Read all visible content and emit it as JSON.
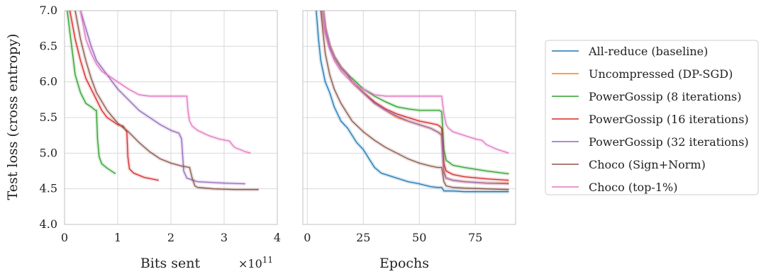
{
  "colors": {
    "all_reduce": "#1f77b4",
    "uncompressed": "#ff7f0e",
    "pg8": "#2ca02c",
    "pg16": "#d62728",
    "pg32": "#9467bd",
    "choco_sign": "#8c564b",
    "choco_top": "#e377c2",
    "grid": "#d9d9d9",
    "frame": "#cccccc"
  },
  "legend": {
    "items": [
      {
        "key": "all_reduce",
        "label": "All-reduce (baseline)"
      },
      {
        "key": "uncompressed",
        "label": "Uncompressed (DP-SGD)"
      },
      {
        "key": "pg8",
        "label": "PowerGossip (8 iterations)"
      },
      {
        "key": "pg16",
        "label": "PowerGossip (16 iterations)"
      },
      {
        "key": "pg32",
        "label": "PowerGossip (32 iterations)"
      },
      {
        "key": "choco_sign",
        "label": "Choco (Sign+Norm)"
      },
      {
        "key": "choco_top",
        "label": "Choco (top-1%)"
      }
    ]
  },
  "chart_data": [
    {
      "type": "line",
      "panel": "left",
      "xlabel": "Bits sent",
      "xscale_label": "×10",
      "xscale_exp": "11",
      "ylabel": "Test loss (cross entropy)",
      "xlim": [
        0,
        4
      ],
      "ylim": [
        4.0,
        7.0
      ],
      "xticks": [
        "0",
        "1",
        "2",
        "3",
        "4"
      ],
      "yticks": [
        "4.0",
        "4.5",
        "5.0",
        "5.5",
        "6.0",
        "6.5",
        "7.0"
      ],
      "series": [
        {
          "key": "pg8",
          "x": [
            0.05,
            0.1,
            0.15,
            0.2,
            0.3,
            0.4,
            0.5,
            0.58,
            0.6,
            0.62,
            0.65,
            0.7,
            0.8,
            0.9,
            0.96
          ],
          "y": [
            7.0,
            6.7,
            6.4,
            6.1,
            5.85,
            5.7,
            5.65,
            5.6,
            5.6,
            5.2,
            4.95,
            4.85,
            4.79,
            4.74,
            4.71
          ]
        },
        {
          "key": "pg16",
          "x": [
            0.1,
            0.2,
            0.3,
            0.4,
            0.5,
            0.6,
            0.7,
            0.8,
            0.9,
            1.0,
            1.1,
            1.17,
            1.19,
            1.22,
            1.3,
            1.5,
            1.7,
            1.77
          ],
          "y": [
            7.0,
            6.6,
            6.3,
            6.05,
            5.9,
            5.75,
            5.6,
            5.5,
            5.45,
            5.4,
            5.38,
            5.3,
            4.95,
            4.78,
            4.72,
            4.66,
            4.63,
            4.62
          ]
        },
        {
          "key": "pg32",
          "x": [
            0.3,
            0.4,
            0.5,
            0.6,
            0.8,
            1.0,
            1.2,
            1.4,
            1.6,
            1.8,
            2.0,
            2.15,
            2.2,
            2.24,
            2.3,
            2.5,
            3.0,
            3.4
          ],
          "y": [
            7.0,
            6.75,
            6.5,
            6.3,
            6.1,
            5.9,
            5.75,
            5.6,
            5.5,
            5.4,
            5.32,
            5.28,
            5.2,
            4.75,
            4.65,
            4.6,
            4.58,
            4.57
          ]
        },
        {
          "key": "choco_sign",
          "x": [
            0.2,
            0.3,
            0.4,
            0.5,
            0.6,
            0.8,
            1.0,
            1.2,
            1.4,
            1.6,
            1.8,
            2.0,
            2.2,
            2.35,
            2.4,
            2.45,
            2.5,
            2.8,
            3.2,
            3.65
          ],
          "y": [
            7.0,
            6.6,
            6.3,
            6.05,
            5.85,
            5.6,
            5.42,
            5.3,
            5.15,
            5.02,
            4.92,
            4.86,
            4.82,
            4.8,
            4.65,
            4.54,
            4.52,
            4.5,
            4.49,
            4.49
          ]
        },
        {
          "key": "choco_top",
          "x": [
            0.3,
            0.4,
            0.5,
            0.6,
            0.7,
            0.8,
            0.9,
            1.0,
            1.2,
            1.4,
            1.6,
            1.8,
            2.0,
            2.2,
            2.3,
            2.32,
            2.35,
            2.4,
            2.5,
            2.7,
            2.9,
            3.1,
            3.15,
            3.2,
            3.4,
            3.5
          ],
          "y": [
            7.0,
            6.6,
            6.4,
            6.25,
            6.15,
            6.1,
            6.05,
            6.0,
            5.9,
            5.82,
            5.8,
            5.8,
            5.8,
            5.8,
            5.8,
            5.6,
            5.45,
            5.38,
            5.32,
            5.25,
            5.2,
            5.17,
            5.12,
            5.08,
            5.02,
            5.0
          ]
        }
      ]
    },
    {
      "type": "line",
      "panel": "right",
      "xlabel": "Epochs",
      "xlim": [
        -2,
        93
      ],
      "ylim": [
        4.0,
        7.0
      ],
      "xticks": [
        "0",
        "25",
        "50",
        "75"
      ],
      "series": [
        {
          "key": "all_reduce",
          "x": [
            4,
            5,
            6,
            8,
            10,
            12,
            15,
            18,
            20,
            22,
            25,
            28,
            30,
            33,
            35,
            40,
            45,
            50,
            55,
            58,
            60,
            61,
            65,
            70,
            80,
            90
          ],
          "y": [
            7.0,
            6.6,
            6.3,
            6.0,
            5.85,
            5.65,
            5.45,
            5.35,
            5.25,
            5.15,
            5.05,
            4.9,
            4.8,
            4.72,
            4.7,
            4.65,
            4.6,
            4.57,
            4.53,
            4.52,
            4.52,
            4.47,
            4.47,
            4.46,
            4.46,
            4.46
          ]
        },
        {
          "key": "uncompressed",
          "x": [
            7,
            8,
            10,
            12,
            15,
            18,
            20,
            25,
            30,
            35,
            40,
            45,
            50,
            55,
            58,
            59,
            60,
            61,
            62,
            65,
            70,
            80,
            90
          ],
          "y": [
            7.0,
            6.7,
            6.5,
            6.35,
            6.2,
            6.1,
            6.0,
            5.85,
            5.7,
            5.6,
            5.5,
            5.45,
            5.4,
            5.35,
            5.3,
            5.28,
            5.25,
            4.75,
            4.65,
            4.62,
            4.6,
            4.58,
            4.58
          ]
        },
        {
          "key": "pg8",
          "x": [
            7,
            8,
            10,
            12,
            15,
            18,
            20,
            25,
            30,
            35,
            40,
            45,
            50,
            55,
            58,
            59,
            60,
            61,
            62,
            65,
            70,
            80,
            90
          ],
          "y": [
            7.0,
            6.75,
            6.5,
            6.35,
            6.2,
            6.1,
            6.05,
            5.9,
            5.8,
            5.72,
            5.65,
            5.62,
            5.6,
            5.6,
            5.6,
            5.6,
            5.58,
            5.05,
            4.9,
            4.83,
            4.8,
            4.75,
            4.71
          ]
        },
        {
          "key": "pg16",
          "x": [
            7,
            8,
            10,
            12,
            15,
            18,
            20,
            25,
            30,
            35,
            40,
            45,
            50,
            55,
            58,
            59,
            60,
            61,
            62,
            65,
            70,
            80,
            90
          ],
          "y": [
            7.0,
            6.75,
            6.5,
            6.35,
            6.2,
            6.1,
            6.0,
            5.85,
            5.72,
            5.62,
            5.55,
            5.5,
            5.45,
            5.42,
            5.4,
            5.38,
            5.35,
            4.85,
            4.75,
            4.7,
            4.67,
            4.64,
            4.62
          ]
        },
        {
          "key": "pg32",
          "x": [
            7,
            8,
            10,
            12,
            15,
            18,
            20,
            25,
            30,
            35,
            40,
            45,
            50,
            55,
            58,
            59,
            60,
            61,
            62,
            65,
            70,
            80,
            90
          ],
          "y": [
            7.0,
            6.75,
            6.5,
            6.35,
            6.2,
            6.1,
            6.0,
            5.85,
            5.7,
            5.6,
            5.52,
            5.45,
            5.4,
            5.35,
            5.3,
            5.28,
            5.25,
            4.72,
            4.65,
            4.62,
            4.6,
            4.58,
            4.57
          ]
        },
        {
          "key": "choco_sign",
          "x": [
            6,
            7,
            8,
            10,
            12,
            15,
            18,
            20,
            25,
            30,
            35,
            40,
            45,
            50,
            55,
            58,
            59,
            60,
            61,
            62,
            65,
            70,
            80,
            90
          ],
          "y": [
            7.0,
            6.7,
            6.4,
            6.1,
            5.9,
            5.7,
            5.55,
            5.45,
            5.3,
            5.18,
            5.08,
            5.0,
            4.92,
            4.86,
            4.82,
            4.8,
            4.8,
            4.8,
            4.6,
            4.54,
            4.52,
            4.51,
            4.5,
            4.49
          ]
        },
        {
          "key": "choco_top",
          "x": [
            7,
            8,
            10,
            12,
            15,
            18,
            20,
            22,
            25,
            30,
            35,
            40,
            45,
            50,
            55,
            58,
            59,
            60,
            61,
            62,
            63,
            65,
            70,
            75,
            78,
            80,
            85,
            90
          ],
          "y": [
            7.0,
            6.7,
            6.45,
            6.3,
            6.15,
            6.05,
            6.0,
            5.95,
            5.9,
            5.82,
            5.8,
            5.8,
            5.8,
            5.8,
            5.8,
            5.8,
            5.8,
            5.8,
            5.55,
            5.4,
            5.35,
            5.3,
            5.25,
            5.2,
            5.18,
            5.12,
            5.05,
            5.0
          ]
        }
      ]
    }
  ]
}
